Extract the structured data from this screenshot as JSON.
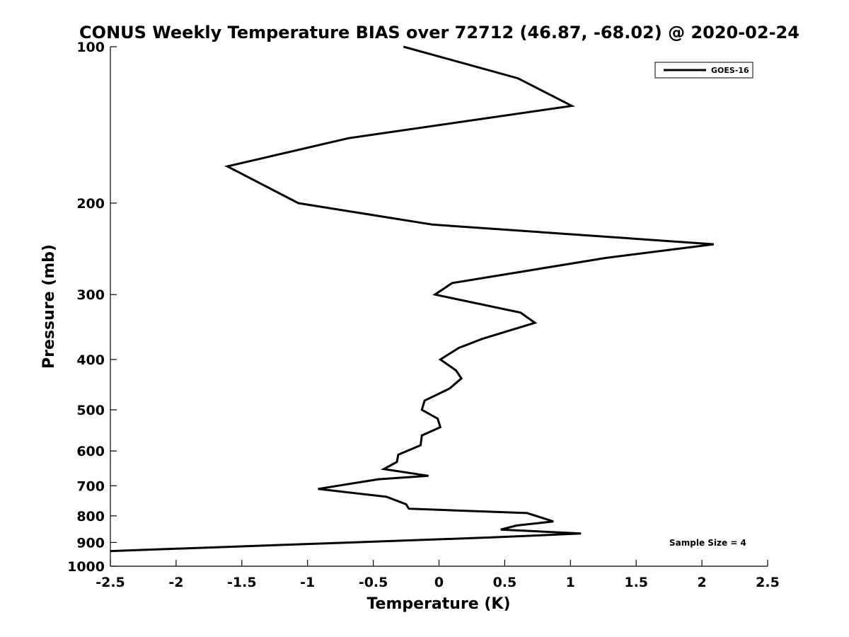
{
  "chart_data": {
    "type": "line",
    "title": "CONUS Weekly Temperature BIAS over 72712 (46.87, -68.02) @ 2020-02-24",
    "xlabel": "Temperature (K)",
    "ylabel": "Pressure (mb)",
    "xlim": [
      -2.5,
      2.5
    ],
    "ylim": [
      1000,
      100
    ],
    "yscale": "log",
    "y_reversed": true,
    "grid": false,
    "legend_position": "top-right",
    "x_ticks": [
      -2.5,
      -2,
      -1.5,
      -1,
      -0.5,
      0,
      0.5,
      1,
      1.5,
      2,
      2.5
    ],
    "x_tick_labels": [
      "-2.5",
      "-2",
      "-1.5",
      "-1",
      "-0.5",
      "0",
      "0.5",
      "1",
      "1.5",
      "2",
      "2.5"
    ],
    "y_ticks": [
      100,
      200,
      300,
      400,
      500,
      600,
      700,
      800,
      900,
      1000
    ],
    "y_tick_labels": [
      "100",
      "200",
      "300",
      "400",
      "500",
      "600",
      "700",
      "800",
      "900",
      "1000"
    ],
    "annotation": "Sample Size = 4",
    "series": [
      {
        "name": "GOES-16",
        "color": "#000000",
        "x": [
          -0.27,
          0.6,
          1.01,
          -0.69,
          -1.61,
          -1.07,
          -0.05,
          2.09,
          1.27,
          0.1,
          -0.03,
          0.62,
          0.73,
          0.33,
          0.15,
          0.01,
          0.13,
          0.17,
          0.08,
          -0.11,
          -0.13,
          -0.01,
          0.01,
          -0.13,
          -0.14,
          -0.31,
          -0.32,
          -0.42,
          -0.08,
          -0.46,
          -0.92,
          -0.4,
          -0.25,
          -0.23,
          0.67,
          0.87,
          0.59,
          0.47,
          1.08,
          0.4,
          -2.5
        ],
        "y": [
          100,
          115,
          130,
          150,
          170,
          200,
          220,
          240,
          255,
          285,
          300,
          325,
          340,
          365,
          380,
          400,
          420,
          435,
          455,
          480,
          500,
          520,
          540,
          560,
          585,
          610,
          630,
          650,
          670,
          680,
          710,
          735,
          760,
          775,
          790,
          820,
          835,
          850,
          865,
          880,
          935
        ]
      }
    ]
  }
}
